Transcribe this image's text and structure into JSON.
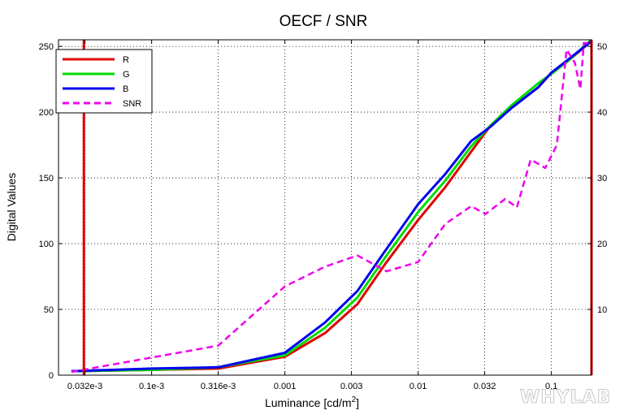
{
  "chart_data": {
    "type": "line",
    "title": "OECF / SNR",
    "xlabel": "Luminance [cd/m",
    "xlabel_sup": "2",
    "xlabel_end": "]",
    "ylabel": "Digital Values",
    "x_scale": "log",
    "xlim": [
      2e-05,
      0.2
    ],
    "ylim": [
      0,
      255
    ],
    "y2lim": [
      0,
      51
    ],
    "grid": true,
    "legend_position": "top-left",
    "x_ticks": [
      {
        "value": 3.16e-05,
        "label": "0.032e-3"
      },
      {
        "value": 0.0001,
        "label": "0.1e-3"
      },
      {
        "value": 0.000316,
        "label": "0.316e-3"
      },
      {
        "value": 0.001,
        "label": "0.001"
      },
      {
        "value": 0.00316,
        "label": "0.003"
      },
      {
        "value": 0.01,
        "label": "0.01"
      },
      {
        "value": 0.0316,
        "label": "0.032"
      },
      {
        "value": 0.1,
        "label": "0.1"
      }
    ],
    "y_ticks": [
      0,
      50,
      100,
      150,
      200,
      250
    ],
    "y2_ticks": [
      10,
      20,
      30,
      40,
      50
    ],
    "vlines": [
      {
        "x": 3.1e-05,
        "color": "#e00000"
      },
      {
        "x": 0.2,
        "color": "#e00000"
      }
    ],
    "series": [
      {
        "name": "R",
        "color": "#e00000",
        "dash": false,
        "axis": "left",
        "x": [
          2.5e-05,
          0.0001,
          0.000316,
          0.001,
          0.002,
          0.0035,
          0.0057,
          0.01,
          0.016,
          0.025,
          0.035,
          0.05,
          0.08,
          0.1,
          0.13,
          0.2
        ],
        "y": [
          3,
          4,
          5,
          14,
          32,
          54,
          85,
          118,
          143,
          170,
          190,
          203,
          219,
          230,
          238,
          254
        ]
      },
      {
        "name": "G",
        "color": "#00dd00",
        "dash": false,
        "axis": "left",
        "x": [
          2.5e-05,
          0.0001,
          0.000316,
          0.001,
          0.002,
          0.0035,
          0.0057,
          0.01,
          0.016,
          0.025,
          0.035,
          0.05,
          0.08,
          0.1,
          0.13,
          0.2
        ],
        "y": [
          3,
          4,
          6,
          15,
          36,
          59,
          90,
          124,
          148,
          174,
          190,
          205,
          222,
          229,
          238,
          255
        ]
      },
      {
        "name": "B",
        "color": "#0000ee",
        "dash": false,
        "axis": "left",
        "x": [
          2.5e-05,
          0.0001,
          0.000316,
          0.001,
          0.002,
          0.0035,
          0.0057,
          0.01,
          0.016,
          0.025,
          0.035,
          0.05,
          0.08,
          0.1,
          0.13,
          0.2
        ],
        "y": [
          3,
          5,
          6,
          17,
          40,
          64,
          95,
          130,
          153,
          178,
          189,
          203,
          219,
          230,
          239,
          254
        ]
      },
      {
        "name": "SNR",
        "color": "#ee00ee",
        "dash": true,
        "axis": "right",
        "x": [
          2.5e-05,
          0.000316,
          0.001,
          0.002,
          0.0035,
          0.0058,
          0.01,
          0.016,
          0.025,
          0.032,
          0.045,
          0.055,
          0.07,
          0.09,
          0.11,
          0.13,
          0.15,
          0.165,
          0.175,
          0.2
        ],
        "y": [
          0.5,
          4.5,
          13.5,
          16.5,
          18.2,
          15.8,
          17.2,
          23,
          25.7,
          24.5,
          26.8,
          25.5,
          32.8,
          31.5,
          35,
          49.5,
          47.5,
          43.5,
          50.5,
          50.5
        ]
      }
    ]
  },
  "watermark": "WHYLAB"
}
